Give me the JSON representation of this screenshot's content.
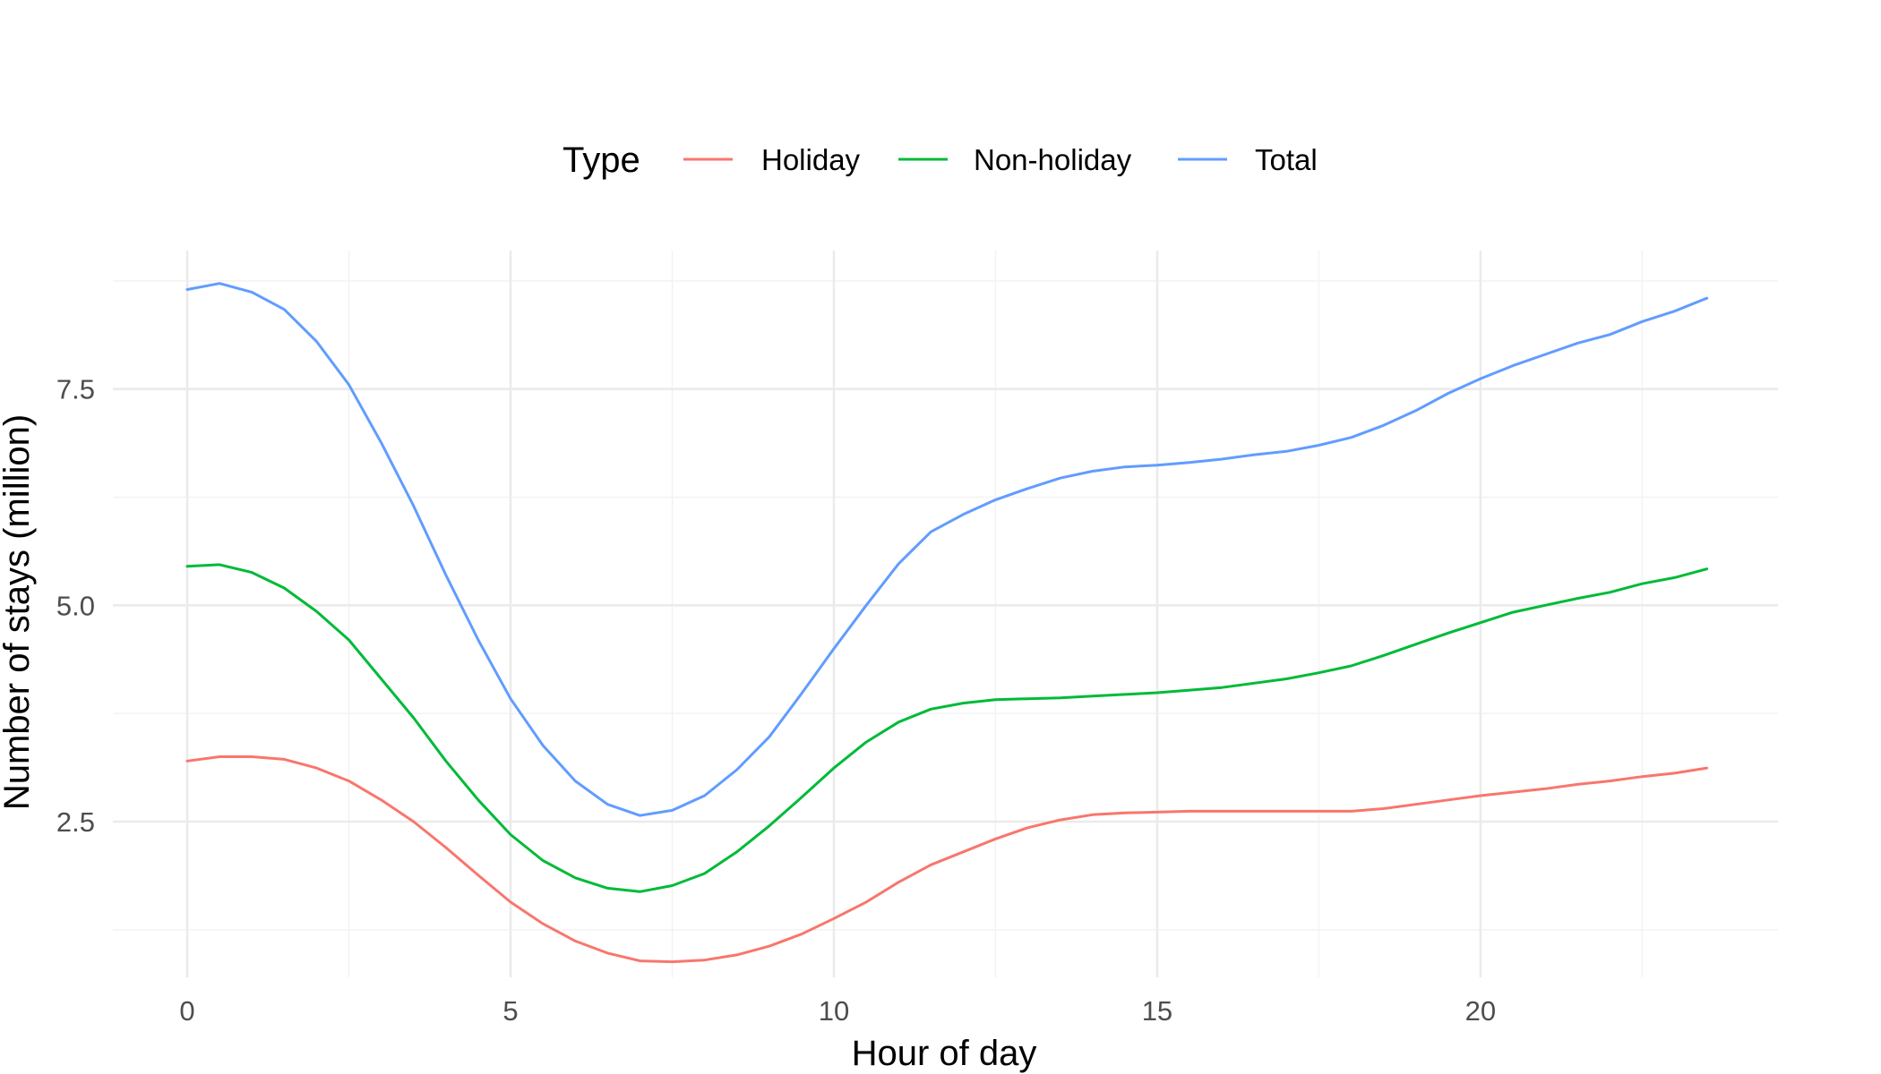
{
  "chart_data": {
    "type": "line",
    "xlabel": "Hour of day",
    "ylabel": "Number of stays (million)",
    "xlim": [
      -1.15,
      24.6
    ],
    "ylim": [
      0.7,
      9.1
    ],
    "x_ticks": [
      0,
      5,
      10,
      15,
      20
    ],
    "y_ticks": [
      2.5,
      5.0,
      7.5
    ],
    "x_tick_labels": [
      "0",
      "5",
      "10",
      "15",
      "20"
    ],
    "y_tick_labels": [
      "2.5",
      "5.0",
      "7.5"
    ],
    "grid": true,
    "legend": {
      "title": "Type",
      "placement": "top",
      "entries": [
        "Holiday",
        "Non-holiday",
        "Total"
      ]
    },
    "x": [
      0,
      0.5,
      1,
      1.5,
      2,
      2.5,
      3,
      3.5,
      4,
      4.5,
      5,
      5.5,
      6,
      6.5,
      7,
      7.5,
      8,
      8.5,
      9,
      9.5,
      10,
      10.5,
      11,
      11.5,
      12,
      12.5,
      13,
      13.5,
      14,
      14.5,
      15,
      15.5,
      16,
      16.5,
      17,
      17.5,
      18,
      18.5,
      19,
      19.5,
      20,
      20.5,
      21,
      21.5,
      22,
      22.5,
      23,
      23.5
    ],
    "series": [
      {
        "name": "Holiday",
        "color": "#f8766d",
        "values": [
          3.2,
          3.25,
          3.25,
          3.22,
          3.12,
          2.97,
          2.75,
          2.5,
          2.2,
          1.88,
          1.57,
          1.32,
          1.12,
          0.98,
          0.89,
          0.88,
          0.9,
          0.96,
          1.06,
          1.2,
          1.38,
          1.57,
          1.8,
          2.0,
          2.15,
          2.3,
          2.43,
          2.52,
          2.58,
          2.6,
          2.61,
          2.62,
          2.62,
          2.62,
          2.62,
          2.62,
          2.62,
          2.65,
          2.7,
          2.75,
          2.8,
          2.84,
          2.88,
          2.93,
          2.97,
          3.02,
          3.06,
          3.12
        ]
      },
      {
        "name": "Non-holiday",
        "color": "#00ba38",
        "values": [
          5.45,
          5.47,
          5.38,
          5.2,
          4.93,
          4.6,
          4.15,
          3.7,
          3.2,
          2.75,
          2.35,
          2.05,
          1.85,
          1.73,
          1.69,
          1.76,
          1.9,
          2.15,
          2.45,
          2.78,
          3.12,
          3.42,
          3.65,
          3.8,
          3.87,
          3.91,
          3.92,
          3.93,
          3.95,
          3.97,
          3.99,
          4.02,
          4.05,
          4.1,
          4.15,
          4.22,
          4.3,
          4.42,
          4.55,
          4.68,
          4.8,
          4.92,
          5.0,
          5.08,
          5.15,
          5.25,
          5.32,
          5.42
        ]
      },
      {
        "name": "Total",
        "color": "#619cff",
        "values": [
          8.65,
          8.72,
          8.62,
          8.42,
          8.05,
          7.55,
          6.88,
          6.15,
          5.35,
          4.6,
          3.92,
          3.38,
          2.97,
          2.7,
          2.57,
          2.63,
          2.8,
          3.1,
          3.48,
          3.98,
          4.5,
          5.0,
          5.48,
          5.85,
          6.05,
          6.22,
          6.35,
          6.47,
          6.55,
          6.6,
          6.62,
          6.65,
          6.69,
          6.74,
          6.78,
          6.85,
          6.94,
          7.08,
          7.25,
          7.45,
          7.62,
          7.77,
          7.9,
          8.03,
          8.13,
          8.28,
          8.4,
          8.55
        ]
      }
    ]
  }
}
